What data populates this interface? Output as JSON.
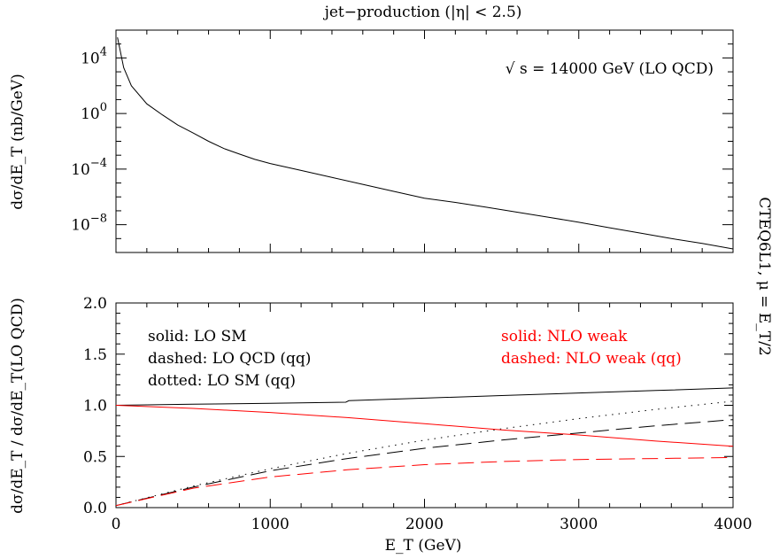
{
  "title": "jet−production (|η| < 2.5)",
  "side_label": "CTEQ6L1, μ = E_T/2",
  "chart_data": [
    {
      "type": "line",
      "panel": "top",
      "ylabel": "dσ/dE_T (nb/GeV)",
      "yscale": "log",
      "xlim": [
        0,
        4000
      ],
      "ylim": [
        1e-10,
        1000000.0
      ],
      "yticks": [
        {
          "value": 10000.0,
          "base": "10",
          "exp": "4"
        },
        {
          "value": 1,
          "base": "10",
          "exp": "0"
        },
        {
          "value": 0.0001,
          "base": "10",
          "exp": "−4"
        },
        {
          "value": 1e-08,
          "base": "10",
          "exp": "−8"
        }
      ],
      "annotation": "√ s = 14000 GeV (LO QCD)",
      "series": [
        {
          "color": "#000000",
          "style": "solid",
          "x": [
            10,
            50,
            100,
            200,
            300,
            400,
            500,
            600,
            700,
            800,
            900,
            1000,
            1200,
            1400,
            1600,
            1800,
            2000,
            2200,
            2400,
            2600,
            2800,
            3000,
            3200,
            3400,
            3600,
            3800,
            4000
          ],
          "y": [
            300000,
            2000,
            100,
            5,
            0.8,
            0.15,
            0.04,
            0.01,
            0.003,
            0.0012,
            0.0005,
            0.00025,
            8e-05,
            2.5e-05,
            8e-06,
            2.5e-06,
            8e-07,
            4e-07,
            1.8e-07,
            8e-08,
            3.5e-08,
            1.5e-08,
            6e-09,
            2.5e-09,
            1e-09,
            4.5e-10,
            1.8e-10
          ]
        }
      ]
    },
    {
      "type": "line",
      "panel": "bottom",
      "xlabel": "E_T (GeV)",
      "ylabel": "dσ/dE_T / dσ/dE_T(LO QCD)",
      "xlim": [
        0,
        4000
      ],
      "ylim": [
        0,
        2
      ],
      "xticks": [
        "0",
        "1000",
        "2000",
        "3000",
        "4000"
      ],
      "yticks": [
        "0.0",
        "0.5",
        "1.0",
        "1.5",
        "2.0"
      ],
      "legend_left": [
        "solid: LO SM",
        "dashed: LO QCD (qq)",
        "dotted: LO SM (qq)"
      ],
      "legend_right": [
        "solid: NLO weak",
        "dashed: NLO weak (qq)"
      ],
      "series": [
        {
          "color": "#000000",
          "style": "solid",
          "x": [
            0,
            500,
            1000,
            1490,
            1510,
            2000,
            2500,
            3000,
            3500,
            4000
          ],
          "y": [
            1.0,
            1.01,
            1.02,
            1.03,
            1.045,
            1.07,
            1.095,
            1.12,
            1.145,
            1.17
          ]
        },
        {
          "color": "#000000",
          "style": "dashed",
          "x": [
            0,
            500,
            1000,
            1500,
            2000,
            2500,
            3000,
            3500,
            4000
          ],
          "y": [
            0.02,
            0.2,
            0.36,
            0.48,
            0.58,
            0.66,
            0.73,
            0.8,
            0.86
          ]
        },
        {
          "color": "#000000",
          "style": "dotted",
          "x": [
            0,
            500,
            1000,
            1500,
            2000,
            2500,
            3000,
            3500,
            4000
          ],
          "y": [
            0.02,
            0.21,
            0.38,
            0.53,
            0.66,
            0.77,
            0.87,
            0.96,
            1.04
          ]
        },
        {
          "color": "#ff0000",
          "style": "solid",
          "x": [
            0,
            500,
            1000,
            1500,
            2000,
            2500,
            3000,
            3500,
            4000
          ],
          "y": [
            1.0,
            0.97,
            0.93,
            0.88,
            0.82,
            0.76,
            0.71,
            0.65,
            0.6
          ]
        },
        {
          "color": "#ff0000",
          "style": "dashed",
          "x": [
            0,
            500,
            1000,
            1500,
            2000,
            2500,
            3000,
            3500,
            4000
          ],
          "y": [
            0.02,
            0.19,
            0.3,
            0.37,
            0.42,
            0.45,
            0.47,
            0.48,
            0.49
          ]
        }
      ]
    }
  ]
}
